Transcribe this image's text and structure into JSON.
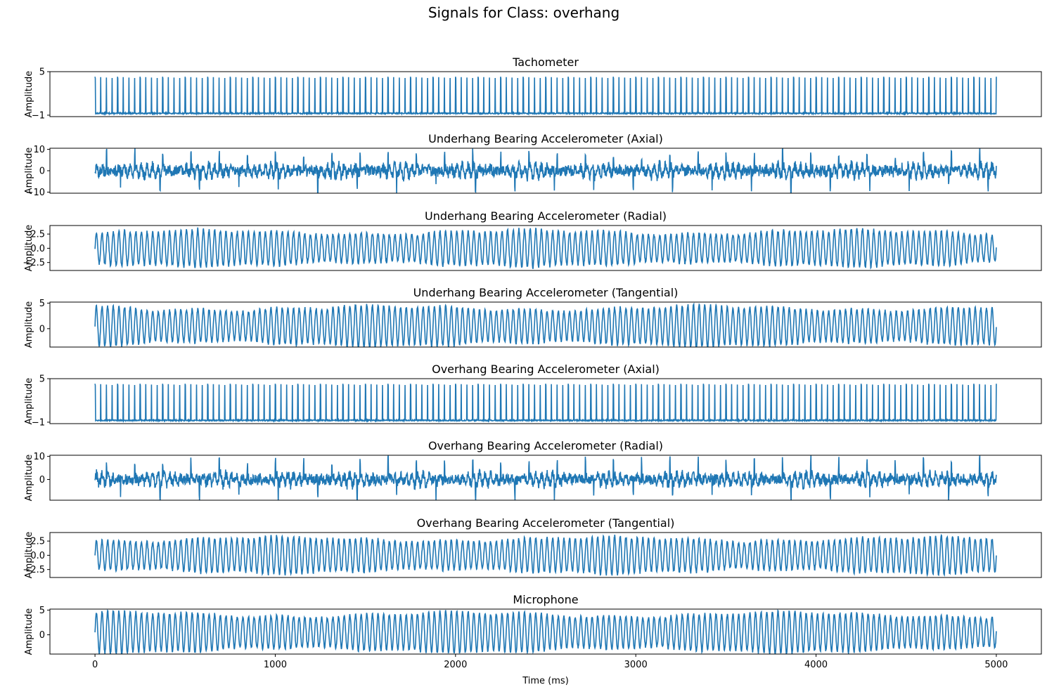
{
  "figure": {
    "suptitle": "Signals for Class: overhang",
    "xlabel": "Time (ms)"
  },
  "chart_data": [
    {
      "type": "line",
      "title": "Tachometer",
      "ylabel": "Amplitude",
      "xlim": [
        -250,
        5250
      ],
      "ylim": [
        -1.2,
        5.0
      ],
      "yticks": [
        {
          "value": -1,
          "label": "−1"
        },
        {
          "value": 5,
          "label": "5"
        }
      ],
      "series": [
        {
          "color": "#1f77b4",
          "duration_ms": 5000,
          "pattern": "pulse",
          "cycles": 160,
          "base": -0.75,
          "peak": 4.3,
          "noise": 0.08
        }
      ]
    },
    {
      "type": "line",
      "title": "Underhang Bearing Accelerometer (Axial)",
      "ylabel": "Amplitude",
      "xlim": [
        -250,
        5250
      ],
      "ylim": [
        -10.5,
        10.5
      ],
      "yticks": [
        {
          "value": -10,
          "label": "−10"
        },
        {
          "value": 0,
          "label": "0"
        },
        {
          "value": 10,
          "label": "10"
        }
      ],
      "series": [
        {
          "color": "#1f77b4",
          "duration_ms": 5000,
          "pattern": "noisy",
          "cycles": 160,
          "base": 0,
          "amplitude": 2.6,
          "noise": 2.5,
          "spike": 8.5
        }
      ]
    },
    {
      "type": "line",
      "title": "Underhang Bearing Accelerometer (Radial)",
      "ylabel": "Amplitude",
      "xlim": [
        -250,
        5250
      ],
      "ylim": [
        -3.9,
        4.0
      ],
      "yticks": [
        {
          "value": -2.5,
          "label": "−2.5"
        },
        {
          "value": 0.0,
          "label": "0.0"
        },
        {
          "value": 2.5,
          "label": "2.5"
        }
      ],
      "series": [
        {
          "color": "#1f77b4",
          "duration_ms": 5000,
          "pattern": "sine",
          "cycles": 160,
          "base": 0,
          "amplitude": 2.8,
          "noise": 0.3
        }
      ]
    },
    {
      "type": "line",
      "title": "Underhang Bearing Accelerometer (Tangential)",
      "ylabel": "Amplitude",
      "xlim": [
        -250,
        5250
      ],
      "ylim": [
        -3.6,
        5.2
      ],
      "yticks": [
        {
          "value": 0,
          "label": "0"
        },
        {
          "value": 5,
          "label": "5"
        }
      ],
      "series": [
        {
          "color": "#1f77b4",
          "duration_ms": 5000,
          "pattern": "sine",
          "cycles": 160,
          "base": 0.5,
          "amplitude": 3.5,
          "noise": 0.3
        }
      ]
    },
    {
      "type": "line",
      "title": "Overhang Bearing Accelerometer (Axial)",
      "ylabel": "Amplitude",
      "xlim": [
        -250,
        5250
      ],
      "ylim": [
        -1.2,
        5.0
      ],
      "yticks": [
        {
          "value": -1,
          "label": "−1"
        },
        {
          "value": 5,
          "label": "5"
        }
      ],
      "series": [
        {
          "color": "#1f77b4",
          "duration_ms": 5000,
          "pattern": "pulse",
          "cycles": 160,
          "base": -0.75,
          "peak": 4.3,
          "noise": 0.08
        }
      ]
    },
    {
      "type": "line",
      "title": "Overhang Bearing Accelerometer (Radial)",
      "ylabel": "Amplitude",
      "xlim": [
        -250,
        5250
      ],
      "ylim": [
        -9.0,
        10.5
      ],
      "yticks": [
        {
          "value": 0,
          "label": "0"
        },
        {
          "value": 10,
          "label": "10"
        }
      ],
      "series": [
        {
          "color": "#1f77b4",
          "duration_ms": 5000,
          "pattern": "noisy",
          "cycles": 160,
          "base": 0,
          "amplitude": 2.3,
          "noise": 2.2,
          "spike": 8.5
        }
      ]
    },
    {
      "type": "line",
      "title": "Overhang Bearing Accelerometer (Tangential)",
      "ylabel": "Amplitude",
      "xlim": [
        -250,
        5250
      ],
      "ylim": [
        -3.9,
        4.0
      ],
      "yticks": [
        {
          "value": -2.5,
          "label": "−2.5"
        },
        {
          "value": 0.0,
          "label": "0.0"
        },
        {
          "value": 2.5,
          "label": "2.5"
        }
      ],
      "series": [
        {
          "color": "#1f77b4",
          "duration_ms": 5000,
          "pattern": "sine",
          "cycles": 160,
          "base": 0,
          "amplitude": 2.8,
          "noise": 0.3
        }
      ]
    },
    {
      "type": "line",
      "title": "Microphone",
      "ylabel": "Amplitude",
      "xlim": [
        -250,
        5250
      ],
      "ylim": [
        -3.9,
        5.2
      ],
      "yticks": [
        {
          "value": 0,
          "label": "0"
        },
        {
          "value": 5,
          "label": "5"
        }
      ],
      "xticks": [
        {
          "value": 0,
          "label": "0"
        },
        {
          "value": 1000,
          "label": "1000"
        },
        {
          "value": 2000,
          "label": "2000"
        },
        {
          "value": 3000,
          "label": "3000"
        },
        {
          "value": 4000,
          "label": "4000"
        },
        {
          "value": 5000,
          "label": "5000"
        }
      ],
      "series": [
        {
          "color": "#1f77b4",
          "duration_ms": 5000,
          "pattern": "sine",
          "cycles": 160,
          "base": 0.5,
          "amplitude": 3.6,
          "noise": 0.3
        }
      ]
    }
  ]
}
